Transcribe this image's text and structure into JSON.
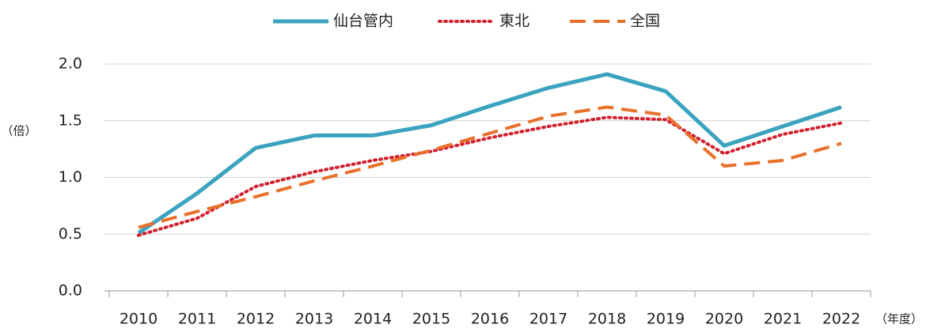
{
  "chart_data": {
    "type": "line",
    "categories": [
      "2010",
      "2011",
      "2012",
      "2013",
      "2014",
      "2015",
      "2016",
      "2017",
      "2018",
      "2019",
      "2020",
      "2021",
      "2022"
    ],
    "series": [
      {
        "name": "仙台管内",
        "color": "#3ba3bf",
        "dash": "solid",
        "values": [
          0.51,
          0.86,
          1.26,
          1.37,
          1.37,
          1.46,
          1.63,
          1.79,
          1.91,
          1.76,
          1.28,
          1.45,
          1.62
        ]
      },
      {
        "name": "東北",
        "color": "#d0202e",
        "dash": "dotted",
        "values": [
          0.49,
          0.64,
          0.92,
          1.05,
          1.15,
          1.23,
          1.35,
          1.45,
          1.53,
          1.51,
          1.21,
          1.38,
          1.48
        ]
      },
      {
        "name": "全国",
        "color": "#e8702a",
        "dash": "dashed",
        "values": [
          0.56,
          0.7,
          0.83,
          0.97,
          1.1,
          1.24,
          1.39,
          1.54,
          1.62,
          1.55,
          1.1,
          1.15,
          1.3
        ]
      }
    ],
    "ylim": [
      0,
      2
    ],
    "yticks": [
      {
        "value": 0,
        "label": "0.0"
      },
      0.5,
      {
        "value": 1,
        "label": "1.0"
      },
      1.5,
      {
        "value": 2,
        "label": "2.0"
      }
    ],
    "y_label": "（倍）",
    "x_label": "（年度）",
    "grid": true,
    "legend": "top"
  }
}
